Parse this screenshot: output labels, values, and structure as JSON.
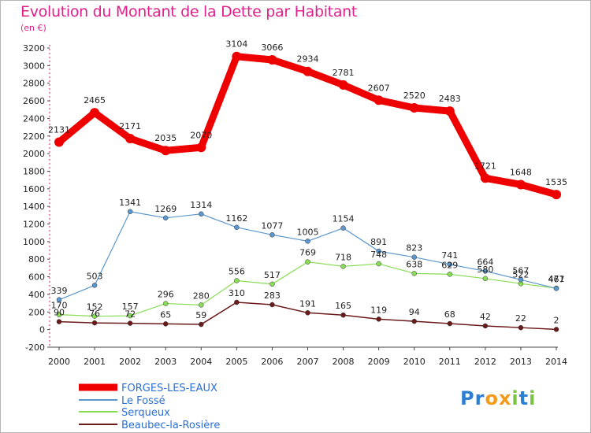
{
  "chart_data": {
    "type": "line",
    "title": "Evolution du Montant de la Dette par Habitant",
    "subtitle": "(en €)",
    "x": [
      "2000",
      "2001",
      "2002",
      "2003",
      "2004",
      "2005",
      "2006",
      "2007",
      "2008",
      "2009",
      "2010",
      "2011",
      "2012",
      "2013",
      "2014"
    ],
    "ylim": [
      -200,
      3200
    ],
    "yticks": [
      -200,
      0,
      200,
      400,
      600,
      800,
      1000,
      1200,
      1400,
      1600,
      1800,
      2000,
      2200,
      2400,
      2600,
      2800,
      3000,
      3200
    ],
    "grid": false,
    "legend_position": "bottom-left",
    "series": [
      {
        "name": "FORGES-LES-EAUX",
        "color": "#ee0000",
        "values": [
          2131,
          2465,
          2171,
          2035,
          2070,
          3104,
          3066,
          2934,
          2781,
          2607,
          2520,
          2483,
          1721,
          1648,
          1535
        ]
      },
      {
        "name": "Le Fossé",
        "color": "#5b97cc",
        "values": [
          339,
          503,
          1341,
          1269,
          1314,
          1162,
          1077,
          1005,
          1154,
          891,
          823,
          741,
          664,
          567,
          467
        ]
      },
      {
        "name": "Serqueux",
        "color": "#88dd55",
        "values": [
          170,
          152,
          157,
          296,
          280,
          556,
          517,
          769,
          718,
          748,
          638,
          629,
          580,
          522,
          471
        ]
      },
      {
        "name": "Beaubec-la-Rosière",
        "color": "#6b1a1a",
        "values": [
          90,
          76,
          72,
          65,
          59,
          310,
          283,
          191,
          165,
          119,
          94,
          68,
          42,
          22,
          2
        ]
      }
    ]
  },
  "logo": {
    "text": "Proxiti",
    "letters": [
      "P",
      "r",
      "o",
      "x",
      "i",
      "t",
      "i"
    ],
    "colors": [
      "#2d7fd4",
      "#2d7fd4",
      "#f39a1c",
      "#f39a1c",
      "#7cc242",
      "#2d7fd4",
      "#7cc242"
    ]
  }
}
